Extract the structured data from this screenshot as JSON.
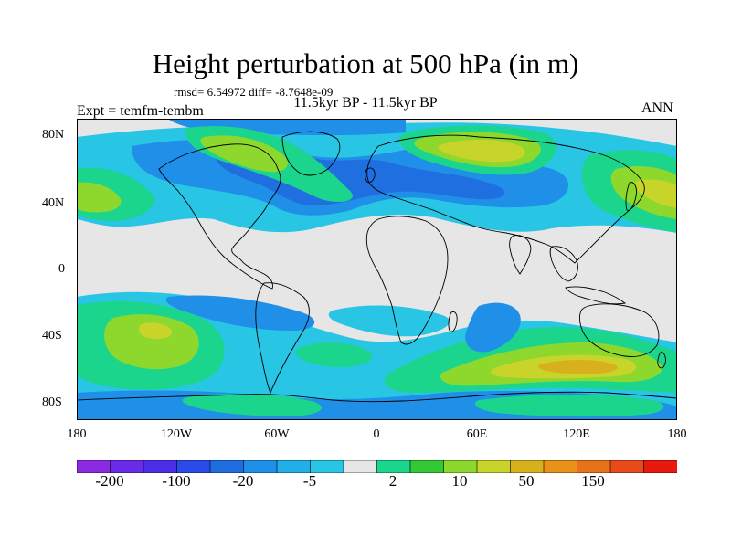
{
  "title": "Height perturbation at 500 hPa (in m)",
  "stats": "rmsd= 6.54972 diff= -8.7648e-09",
  "period": "11.5kyr BP - 11.5kyr BP",
  "expt": "Expt = temfm-tembm",
  "season": "ANN",
  "lat_labels": [
    "80N",
    "40N",
    "0",
    "40S",
    "80S"
  ],
  "lon_labels": [
    "180",
    "120W",
    "60W",
    "0",
    "60E",
    "120E",
    "180"
  ],
  "colorbar": {
    "labels": [
      "-200",
      "-100",
      "-20",
      "-5",
      "2",
      "10",
      "50",
      "150"
    ],
    "colors": [
      "#8a2be2",
      "#6a2be8",
      "#4a2fe6",
      "#2b4be8",
      "#1e6ee0",
      "#1f8fe8",
      "#22aee6",
      "#28c5e5",
      "#e6e6e6",
      "#1bd58c",
      "#34c934",
      "#8ed82e",
      "#c8d42a",
      "#d8b01e",
      "#e89218",
      "#e8721c",
      "#e84a1c",
      "#e81a10"
    ]
  },
  "colors": {
    "land_coast": "#000000",
    "background": "#e6e6e6",
    "neg_strong": "#1f6fe0",
    "neg_mid": "#1f8fe8",
    "neg_weak": "#28c5e5",
    "pos_weak": "#1bd58c",
    "pos_mid": "#8ed82e",
    "pos_strong": "#c8d42a",
    "pos_max": "#d8b01e"
  }
}
